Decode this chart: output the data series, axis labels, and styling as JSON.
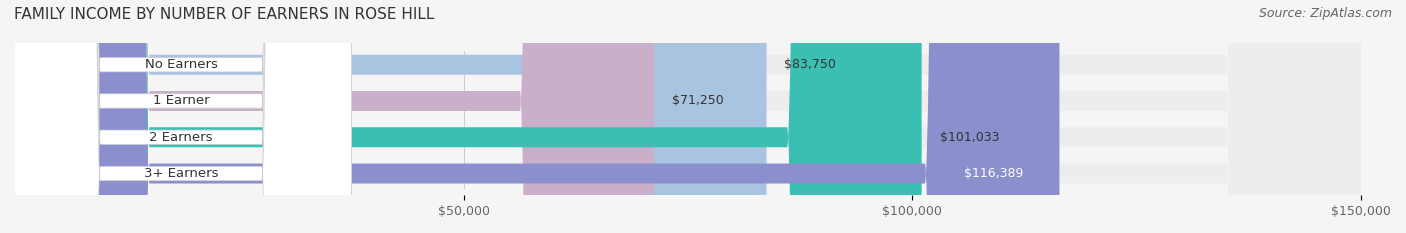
{
  "title": "FAMILY INCOME BY NUMBER OF EARNERS IN ROSE HILL",
  "source": "Source: ZipAtlas.com",
  "categories": [
    "No Earners",
    "1 Earner",
    "2 Earners",
    "3+ Earners"
  ],
  "values": [
    83750,
    71250,
    101033,
    116389
  ],
  "value_labels": [
    "$83,750",
    "$71,250",
    "$101,033",
    "$116,389"
  ],
  "bar_colors": [
    "#a8c4e0",
    "#c9afc9",
    "#3bbfb2",
    "#8b8fce"
  ],
  "bar_bg_color": "#ededee",
  "label_bg_color": "#ffffff",
  "xlim": [
    0,
    150000
  ],
  "xticks": [
    50000,
    100000,
    150000
  ],
  "xtick_labels": [
    "$50,000",
    "$100,000",
    "$150,000"
  ],
  "title_fontsize": 11,
  "source_fontsize": 9,
  "bar_label_fontsize": 9,
  "tick_fontsize": 9,
  "cat_label_fontsize": 9.5,
  "background_color": "#f5f5f5",
  "fig_width": 14.06,
  "fig_height": 2.33
}
